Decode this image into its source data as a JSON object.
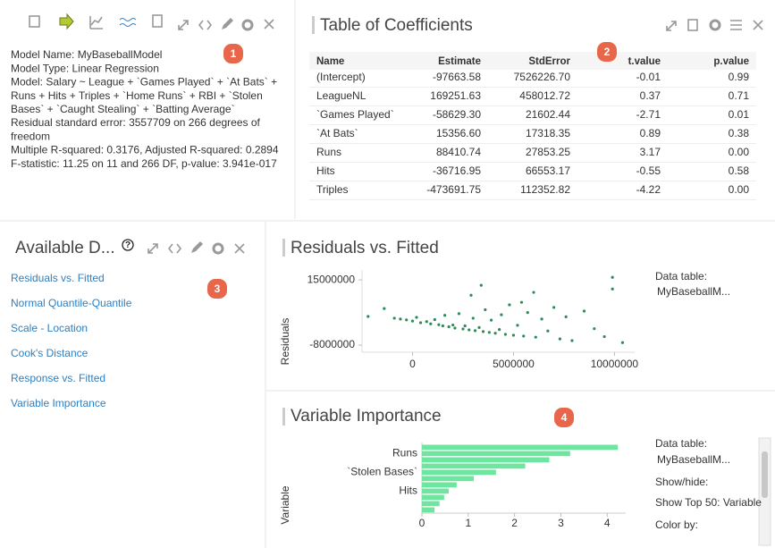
{
  "model_panel": {
    "lines": [
      "Model Name: MyBaseballModel",
      "Model Type: Linear Regression",
      "Model: Salary ~ League + `Games Played` + `At Bats` +",
      "Runs + Hits + Triples + `Home Runs` + RBI + `Stolen",
      "Bases` + `Caught Stealing` + `Batting Average`",
      "Residual standard error: 3557709 on 266 degrees of",
      "freedom",
      "Multiple R-squared: 0.3176, Adjusted R-squared: 0.2894",
      "F-statistic: 11.25 on 11 and 266 DF, p-value: 3.941e-017"
    ]
  },
  "badges": [
    "1",
    "2",
    "3",
    "4"
  ],
  "coefficients": {
    "title": "Table of Coefficients",
    "columns": [
      "Name",
      "Estimate",
      "StdError",
      "t.value",
      "p.value"
    ],
    "rows": [
      [
        "(Intercept)",
        "-97663.58",
        "7526226.70",
        "-0.01",
        "0.99"
      ],
      [
        "LeagueNL",
        "169251.63",
        "458012.72",
        "0.37",
        "0.71"
      ],
      [
        "`Games Played`",
        "-58629.30",
        "21602.44",
        "-2.71",
        "0.01"
      ],
      [
        "`At Bats`",
        "15356.60",
        "17318.35",
        "0.89",
        "0.38"
      ],
      [
        "Runs",
        "88410.74",
        "27853.25",
        "3.17",
        "0.00"
      ],
      [
        "Hits",
        "-36716.95",
        "66553.17",
        "-0.55",
        "0.58"
      ],
      [
        "Triples",
        "-473691.75",
        "112352.82",
        "-4.22",
        "0.00"
      ]
    ]
  },
  "analyses": {
    "title": "Available D...",
    "help": "?",
    "items": [
      "Residuals vs. Fitted",
      "Normal Quantile-Quantile",
      "Scale - Location",
      "Cook's Distance",
      "Response vs. Fitted",
      "Variable Importance"
    ]
  },
  "scatter_side": [
    "Data table:",
    "MyBaseballM..."
  ],
  "bar_side": [
    "Data table:",
    "MyBaseballM...",
    "Show/hide:",
    "Show Top 50: Variable",
    "Color by:"
  ],
  "chart_data": [
    {
      "type": "scatter",
      "title": "Residuals vs. Fitted",
      "y_label": "Residuals",
      "color": "#2e8b57",
      "x": [
        -2200000,
        -1400000,
        -900000,
        -600000,
        -300000,
        0,
        200000,
        400000,
        700000,
        900000,
        1100000,
        1300000,
        1500000,
        1600000,
        1800000,
        2000000,
        2100000,
        2300000,
        2500000,
        2600000,
        2800000,
        2900000,
        3000000,
        3100000,
        3300000,
        3400000,
        3500000,
        3600000,
        3800000,
        3900000,
        4100000,
        4300000,
        4400000,
        4600000,
        4800000,
        5000000,
        5200000,
        5400000,
        5500000,
        5700000,
        6000000,
        6100000,
        6400000,
        6700000,
        7000000,
        7300000,
        7600000,
        7900000,
        8500000,
        9000000,
        9500000,
        9900000,
        9900000,
        10400000
      ],
      "y": [
        2100000,
        4900000,
        1500000,
        1200000,
        900000,
        500000,
        1800000,
        -100000,
        300000,
        -500000,
        1000000,
        -800000,
        -1200000,
        2500000,
        -1500000,
        -900000,
        -2000000,
        3100000,
        -2300000,
        -1200000,
        -2600000,
        9600000,
        1500000,
        -2900000,
        -1800000,
        13100000,
        -3200000,
        4500000,
        -3500000,
        800000,
        -3800000,
        -2500000,
        2700000,
        -4200000,
        6200000,
        -4500000,
        -1000000,
        7100000,
        -4800000,
        3500000,
        10600000,
        -5200000,
        1200000,
        -3000000,
        5300000,
        -5800000,
        2000000,
        -6400000,
        4000000,
        -2200000,
        -5000000,
        15900000,
        11800000,
        -7100000
      ],
      "xlim": [
        -2500000,
        11000000
      ],
      "ylim": [
        -10500000,
        18500000
      ],
      "xticks": [
        0,
        5000000,
        10000000
      ],
      "yticks": [
        -8000000,
        15000000
      ]
    },
    {
      "type": "bar",
      "orientation": "horizontal",
      "title": "Variable Importance",
      "y_label": "Variable",
      "color": "#6ee6a0",
      "categories": [
        null,
        "Runs",
        null,
        null,
        "`Stolen Bases`",
        null,
        null,
        "Hits",
        null,
        null,
        null
      ],
      "values": [
        4.23,
        3.2,
        2.75,
        2.23,
        1.6,
        1.12,
        0.75,
        0.58,
        0.48,
        0.38,
        0.27
      ],
      "xlim": [
        0,
        4.4
      ],
      "xticks": [
        0,
        1,
        2,
        3,
        4
      ]
    }
  ]
}
